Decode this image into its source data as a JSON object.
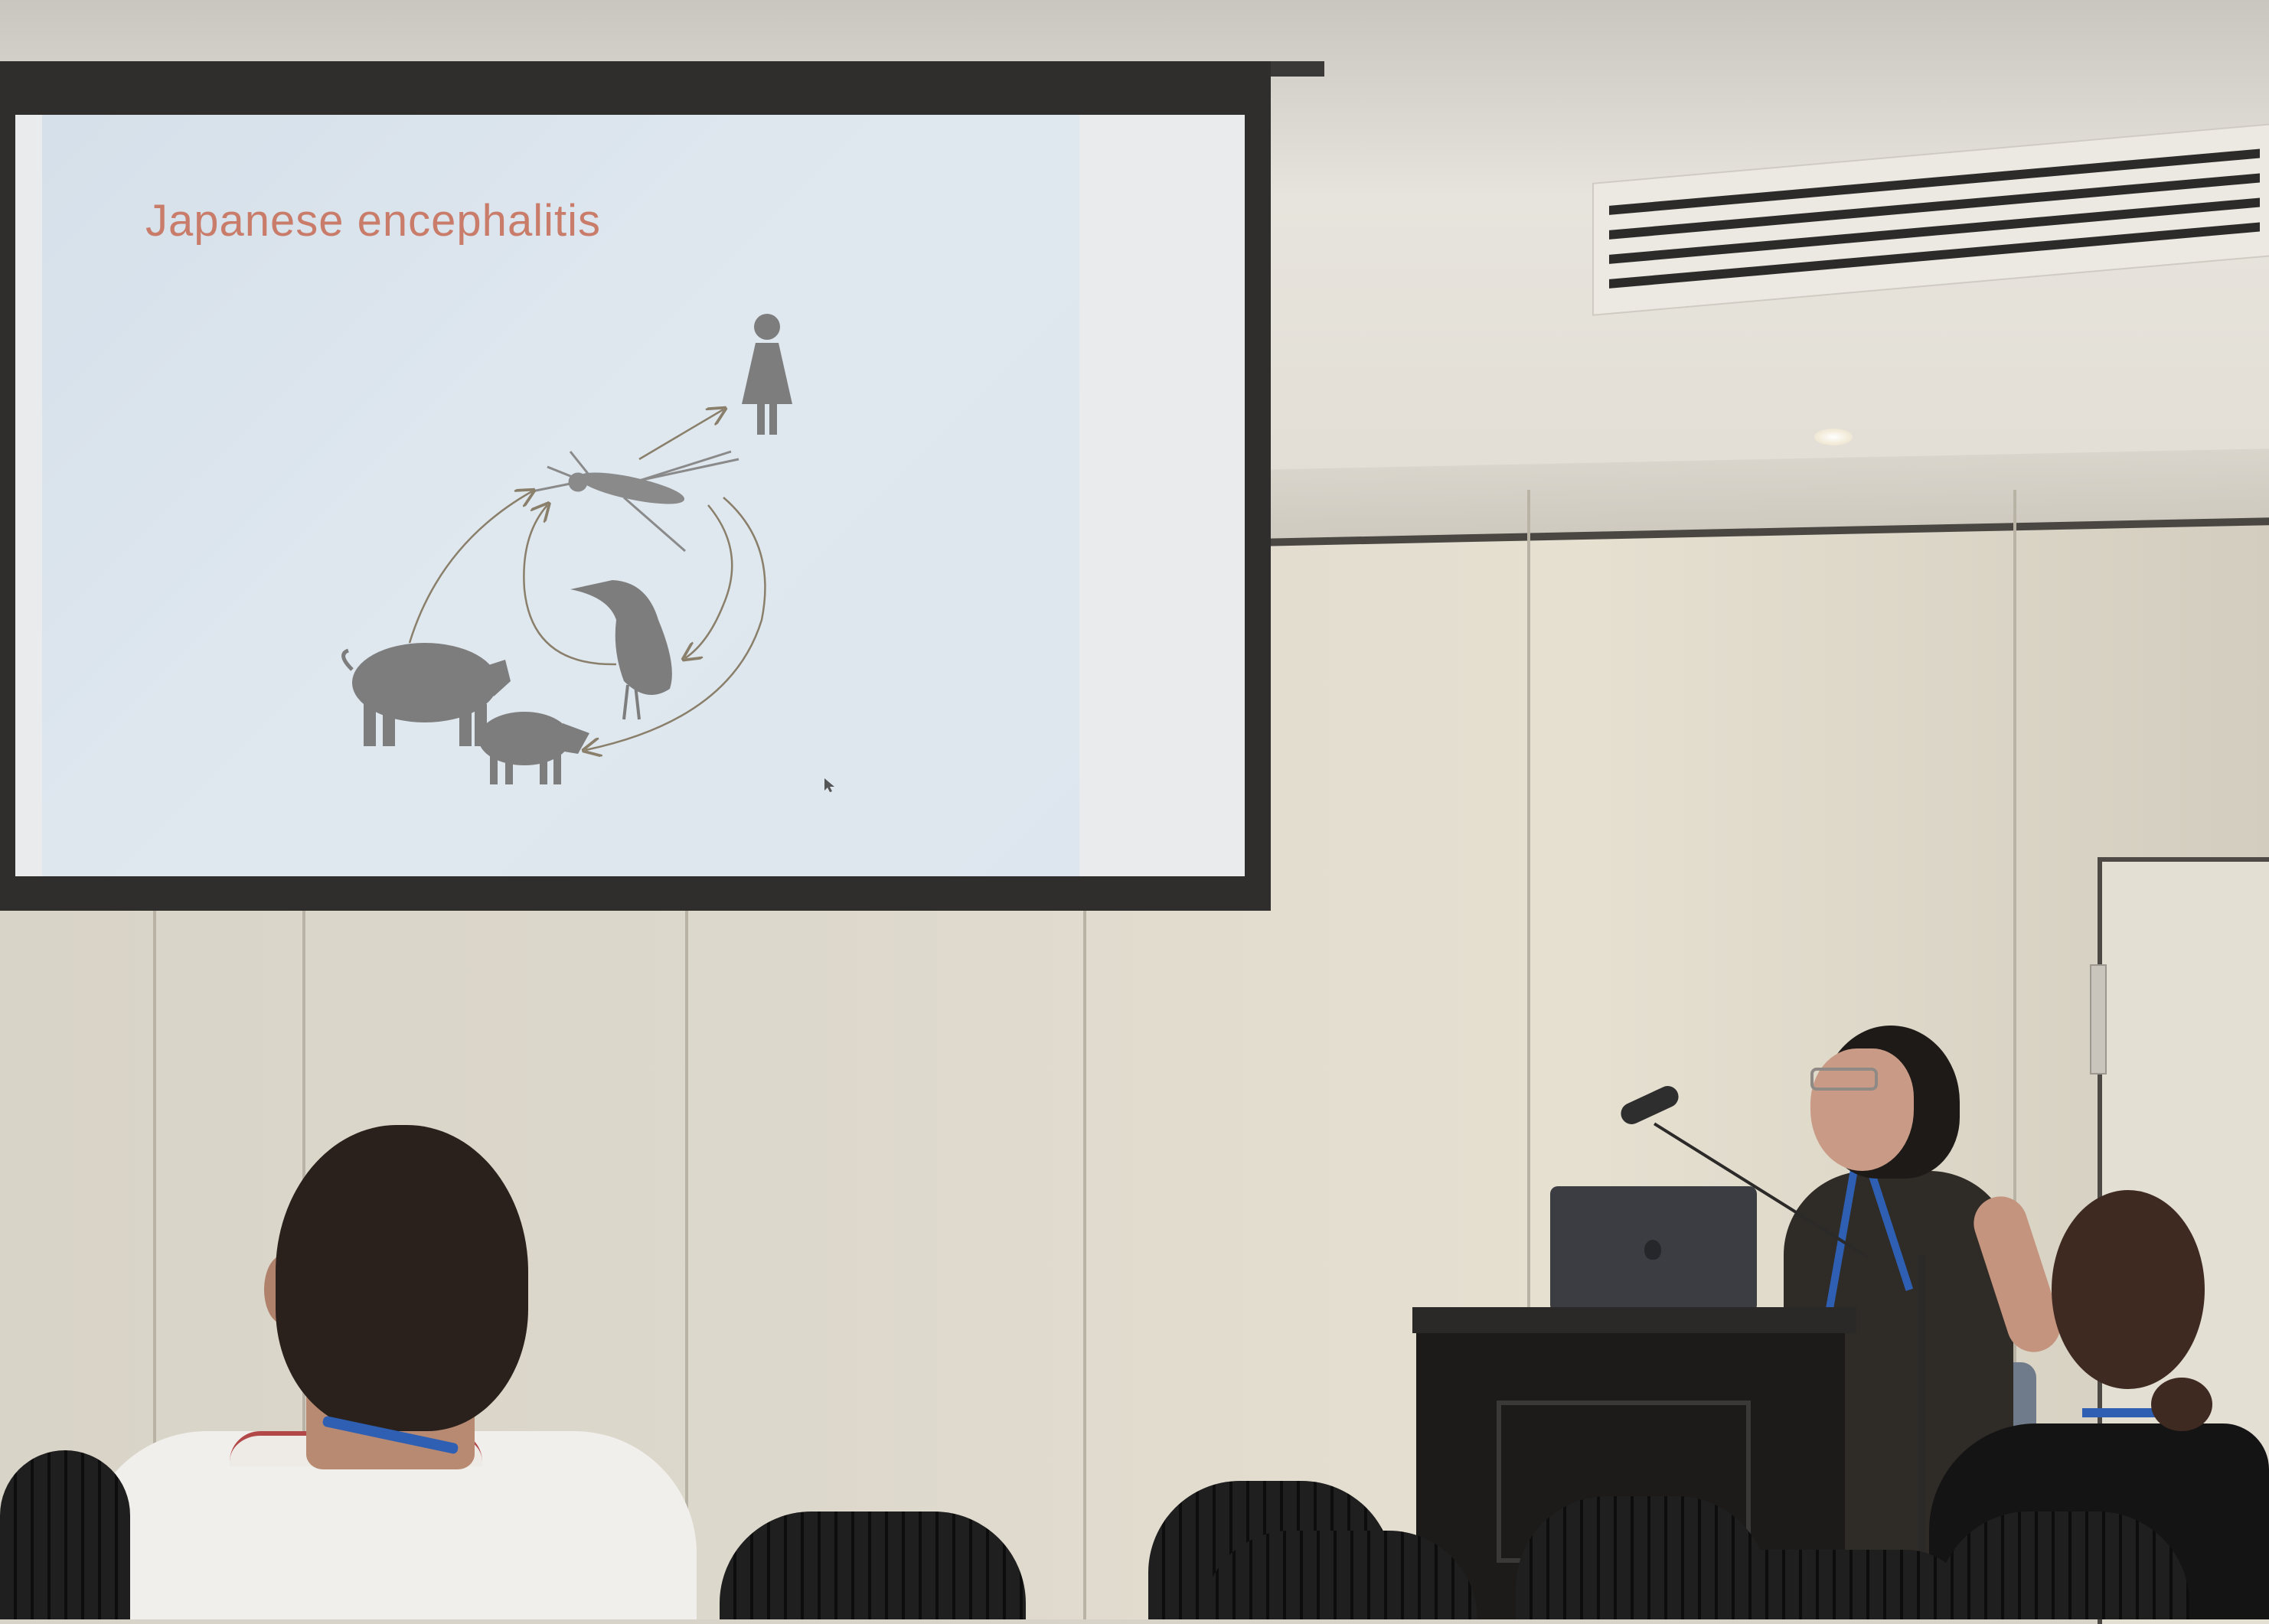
{
  "slide": {
    "title": "Japanese encephalitis",
    "diagram_icons": [
      "woman-icon",
      "mosquito-icon",
      "heron-icon",
      "pig-icon",
      "boar-icon"
    ]
  },
  "colors": {
    "slide_background": "#dce6ee",
    "slide_title": "#c97c6a",
    "silhouette": "#7d7d7d",
    "lanyard": "#2e5fb3"
  }
}
